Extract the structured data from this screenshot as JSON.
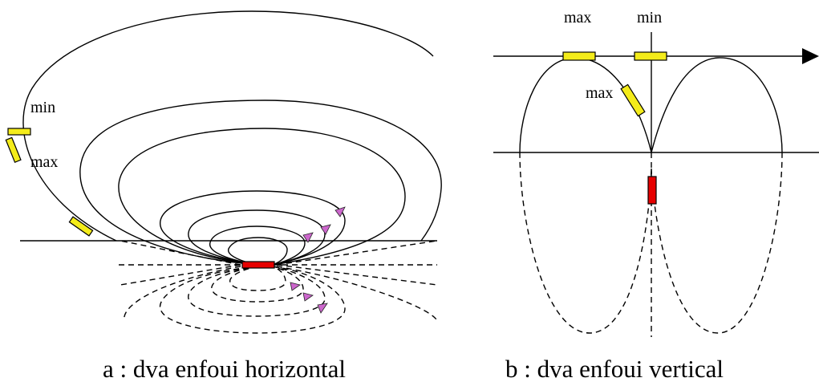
{
  "panel_a": {
    "label_min": "min",
    "label_max": "max",
    "caption": "a : dva enfoui horizontal",
    "colors": {
      "beacon": "#e60000",
      "receiver": "#f4ec1a",
      "arrow": "#cc66cc"
    }
  },
  "panel_b": {
    "label_max_top": "max",
    "label_min_top": "min",
    "label_max_side": "max",
    "caption": "b : dva enfoui vertical"
  }
}
